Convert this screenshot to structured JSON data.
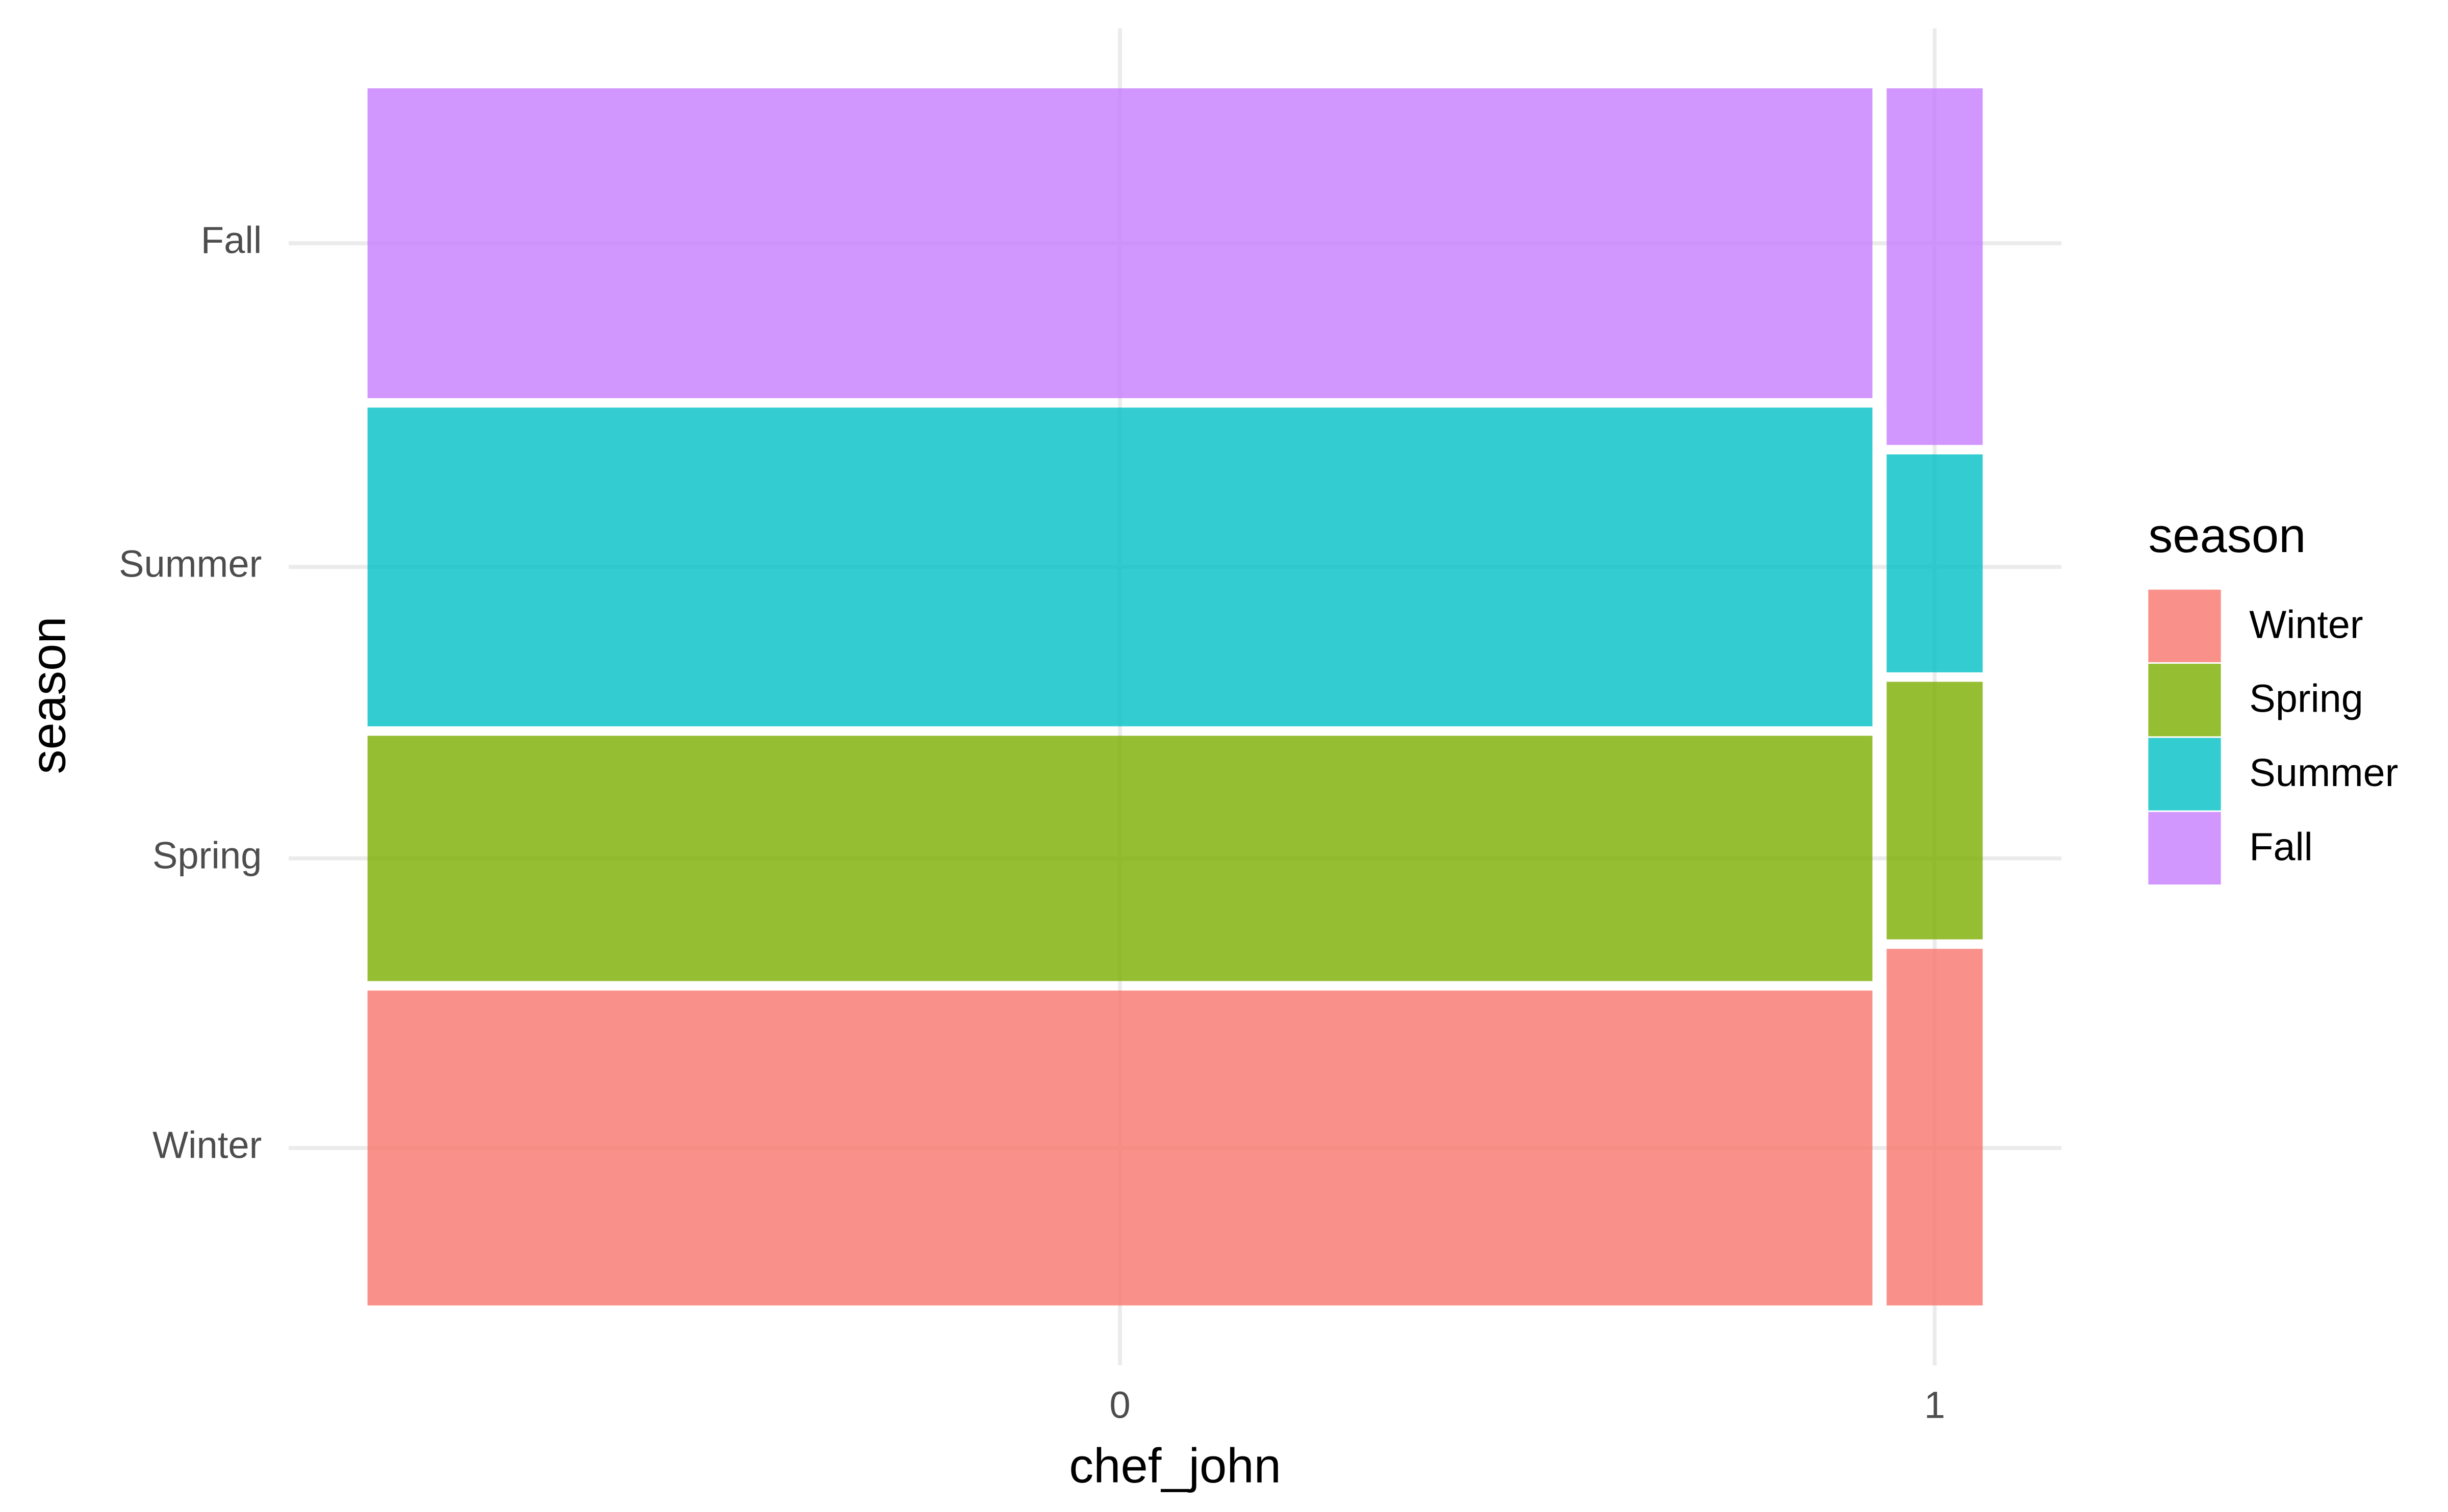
{
  "chart_data": {
    "type": "mosaic",
    "x_label": "chef_john",
    "y_label": "season",
    "legend_title": "season",
    "categories": [
      "0",
      "1"
    ],
    "series": [
      {
        "name": "Winter",
        "color": "#F8766D",
        "values": [
          249,
          18
        ]
      },
      {
        "name": "Spring",
        "color": "#7CAE00",
        "values": [
          194,
          13
        ]
      },
      {
        "name": "Summer",
        "color": "#00BFC4",
        "values": [
          252,
          11
        ]
      },
      {
        "name": "Fall",
        "color": "#C77CFF",
        "values": [
          245,
          18
        ]
      }
    ],
    "grid": true,
    "legend_position": "right"
  }
}
